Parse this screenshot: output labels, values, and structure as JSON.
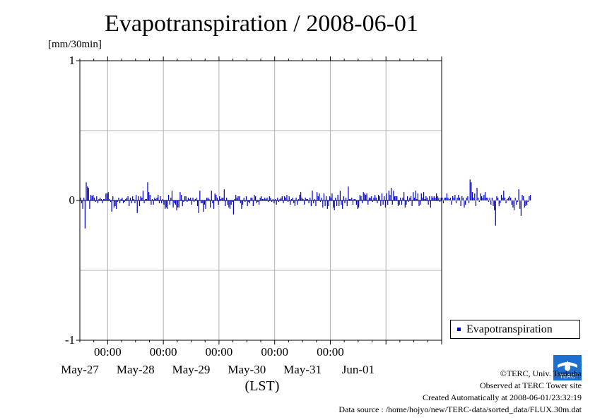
{
  "chart_data": {
    "type": "bar",
    "title": "Evapotranspiration / 2008-06-01",
    "ylabel": "[mm/30min]",
    "xlabel": "(LST)",
    "ylim": [
      -1,
      1
    ],
    "yticks": [
      "1",
      "0",
      "-1"
    ],
    "ytick_values": [
      1,
      0,
      -1
    ],
    "xlim": [
      "2008-05-26T12:00",
      "2008-06-01T24:00"
    ],
    "x_time_labels": [
      "00:00",
      "00:00",
      "00:00",
      "00:00",
      "00:00"
    ],
    "x_date_labels": [
      "May-27",
      "May-28",
      "May-29",
      "May-30",
      "May-31",
      "Jun-01"
    ],
    "grid": true,
    "legend_position": "right-bottom",
    "series": [
      {
        "name": "Evapotranspiration",
        "color": "#0000cc",
        "interval_minutes": 30,
        "values": [
          0.02,
          -0.02,
          -0.06,
          0.02,
          -0.2,
          0.13,
          0.1,
          0.09,
          -0.06,
          0.04,
          0.03,
          0.04,
          0.02,
          -0.01,
          0.03,
          -0.02,
          0.01,
          0.02,
          0.01,
          -0.02,
          0.01,
          0.01,
          0.05,
          0.05,
          0.06,
          0.01,
          -0.01,
          -0.08,
          0.03,
          -0.05,
          -0.04,
          -0.06,
          -0.01,
          0.02,
          -0.02,
          0.01,
          0.02,
          -0.02,
          -0.01,
          0.01,
          0.02,
          0.03,
          -0.04,
          0.02,
          -0.02,
          0.03,
          0.01,
          -0.02,
          0.04,
          -0.09,
          0.03,
          -0.04,
          0.03,
          0.02,
          0.07,
          -0.02,
          0.01,
          0.01,
          0.13,
          0.06,
          0.04,
          -0.03,
          0.01,
          -0.03,
          0.02,
          0.01,
          0.02,
          0.04,
          -0.02,
          0.03,
          -0.02,
          0.01,
          -0.03,
          -0.06,
          -0.05,
          -0.06,
          0.04,
          -0.03,
          0.02,
          0.07,
          -0.05,
          -0.02,
          -0.03,
          -0.07,
          -0.05,
          -0.05,
          0.06,
          0.04,
          -0.04,
          -0.01,
          0.03,
          0.03,
          -0.01,
          0.02,
          0.01,
          0.02,
          -0.03,
          0.02,
          -0.01,
          0.01,
          0.02,
          -0.04,
          -0.09,
          0.07,
          -0.02,
          -0.02,
          -0.08,
          -0.03,
          -0.06,
          0.02,
          0.02,
          0.01,
          -0.05,
          0.07,
          -0.02,
          -0.06,
          0.05,
          0.04,
          0.02,
          -0.03,
          0.03,
          0.01,
          0.02,
          0.02,
          0.08,
          -0.04,
          0.02,
          -0.03,
          -0.05,
          -0.06,
          -0.03,
          -0.01,
          -0.1,
          0.01,
          0.04,
          0.02,
          0.03,
          0.03,
          -0.02,
          -0.06,
          -0.03,
          0.02,
          -0.01,
          0.03,
          -0.04,
          -0.01,
          -0.02,
          0.02,
          0.02,
          -0.04,
          0.04,
          0.03,
          -0.02,
          -0.01,
          -0.03,
          0.02,
          0.03,
          0.01,
          0.01,
          0.02,
          0.01,
          0.02,
          -0.01,
          0.03,
          0.02,
          -0.01,
          0.01,
          -0.02,
          0.01,
          -0.03,
          0.02,
          -0.01,
          0.01,
          0.02,
          0.03,
          -0.02,
          0.03,
          0.02,
          0.04,
          -0.01,
          0.03,
          -0.03,
          0.01,
          0.02,
          -0.02,
          -0.04,
          0.02,
          -0.03,
          0.01,
          0.04,
          0.06,
          0.02,
          0.01,
          -0.03,
          0.02,
          0.01,
          0.01,
          -0.02,
          0.02,
          -0.04,
          0.07,
          -0.02,
          0.01,
          -0.04,
          0.06,
          0.03,
          0.05,
          -0.01,
          0.02,
          -0.05,
          0.05,
          -0.04,
          0.03,
          -0.06,
          -0.04,
          0.03,
          0.02,
          0.05,
          -0.05,
          -0.07,
          0.02,
          -0.04,
          0.04,
          -0.04,
          0.07,
          -0.03,
          -0.06,
          0.03,
          -0.02,
          0.02,
          -0.04,
          0.1,
          0.01,
          0.01,
          0.02,
          -0.03,
          0.01,
          0.01,
          -0.03,
          -0.06,
          -0.05,
          0.04,
          0.03,
          -0.02,
          0.06,
          0.05,
          0.04,
          0.05,
          -0.03,
          0.02,
          0.02,
          0.03,
          -0.01,
          0.02,
          0.04,
          0.02,
          -0.02,
          0.04,
          0.03,
          -0.04,
          0.05,
          -0.03,
          0.03,
          -0.05,
          0.05,
          -0.03,
          0.07,
          0.04,
          0.09,
          -0.03,
          0.07,
          0.03,
          0.03,
          0.03,
          -0.04,
          -0.03,
          0.02,
          -0.03,
          0.02,
          0.06,
          -0.05,
          -0.03,
          0.03,
          -0.01,
          0.02,
          0.03,
          -0.04,
          0.06,
          0.02,
          0.07,
          0.01,
          0.05,
          -0.04,
          -0.03,
          0.05,
          0.02,
          0.06,
          0.01,
          0.03,
          0.02,
          -0.03,
          0.03,
          -0.05,
          0.03,
          0.02,
          0.03,
          0.02,
          0.05,
          0.03,
          0.02,
          -0.01,
          0.02,
          0.02,
          -0.02,
          0.02,
          0.02,
          0.05,
          0.02,
          0.01,
          0.02,
          -0.03,
          0.03,
          0.02,
          0.04,
          -0.02,
          0.02,
          0.04,
          0.02,
          -0.04,
          0.03,
          0.02,
          -0.05,
          -0.03,
          0.02,
          0.03,
          -0.02,
          0.15,
          0.13,
          0.06,
          0.02,
          0.05,
          -0.04,
          0.09,
          0.02,
          -0.01,
          0.05,
          0.03,
          0.02,
          0.04,
          0.06,
          0.02,
          0.02,
          -0.01,
          0.02,
          -0.03,
          0.02,
          -0.04,
          -0.07,
          -0.18,
          0.03,
          0.02,
          -0.04,
          -0.02,
          0.04,
          0.02,
          0.07,
          0.02,
          -0.02,
          0.01,
          0.02,
          0.03,
          0.02,
          -0.03,
          -0.05,
          -0.07,
          0.02,
          -0.03,
          -0.01,
          0.08,
          -0.06,
          -0.11,
          0.04,
          0.03,
          -0.05,
          -0.04,
          -0.03,
          -0.01,
          0.03,
          0.04
        ]
      }
    ]
  },
  "credits": {
    "copyright": "©TERC, Univ. Tsukuba",
    "observed": "Observed at TERC Tower site",
    "created": "Created Automatically at 2008-06-01/23:32:19",
    "source": "Data source : /home/hojyo/new/TERC-data/sorted_data/FLUX.30m.dat",
    "logo_text": "TERC"
  }
}
